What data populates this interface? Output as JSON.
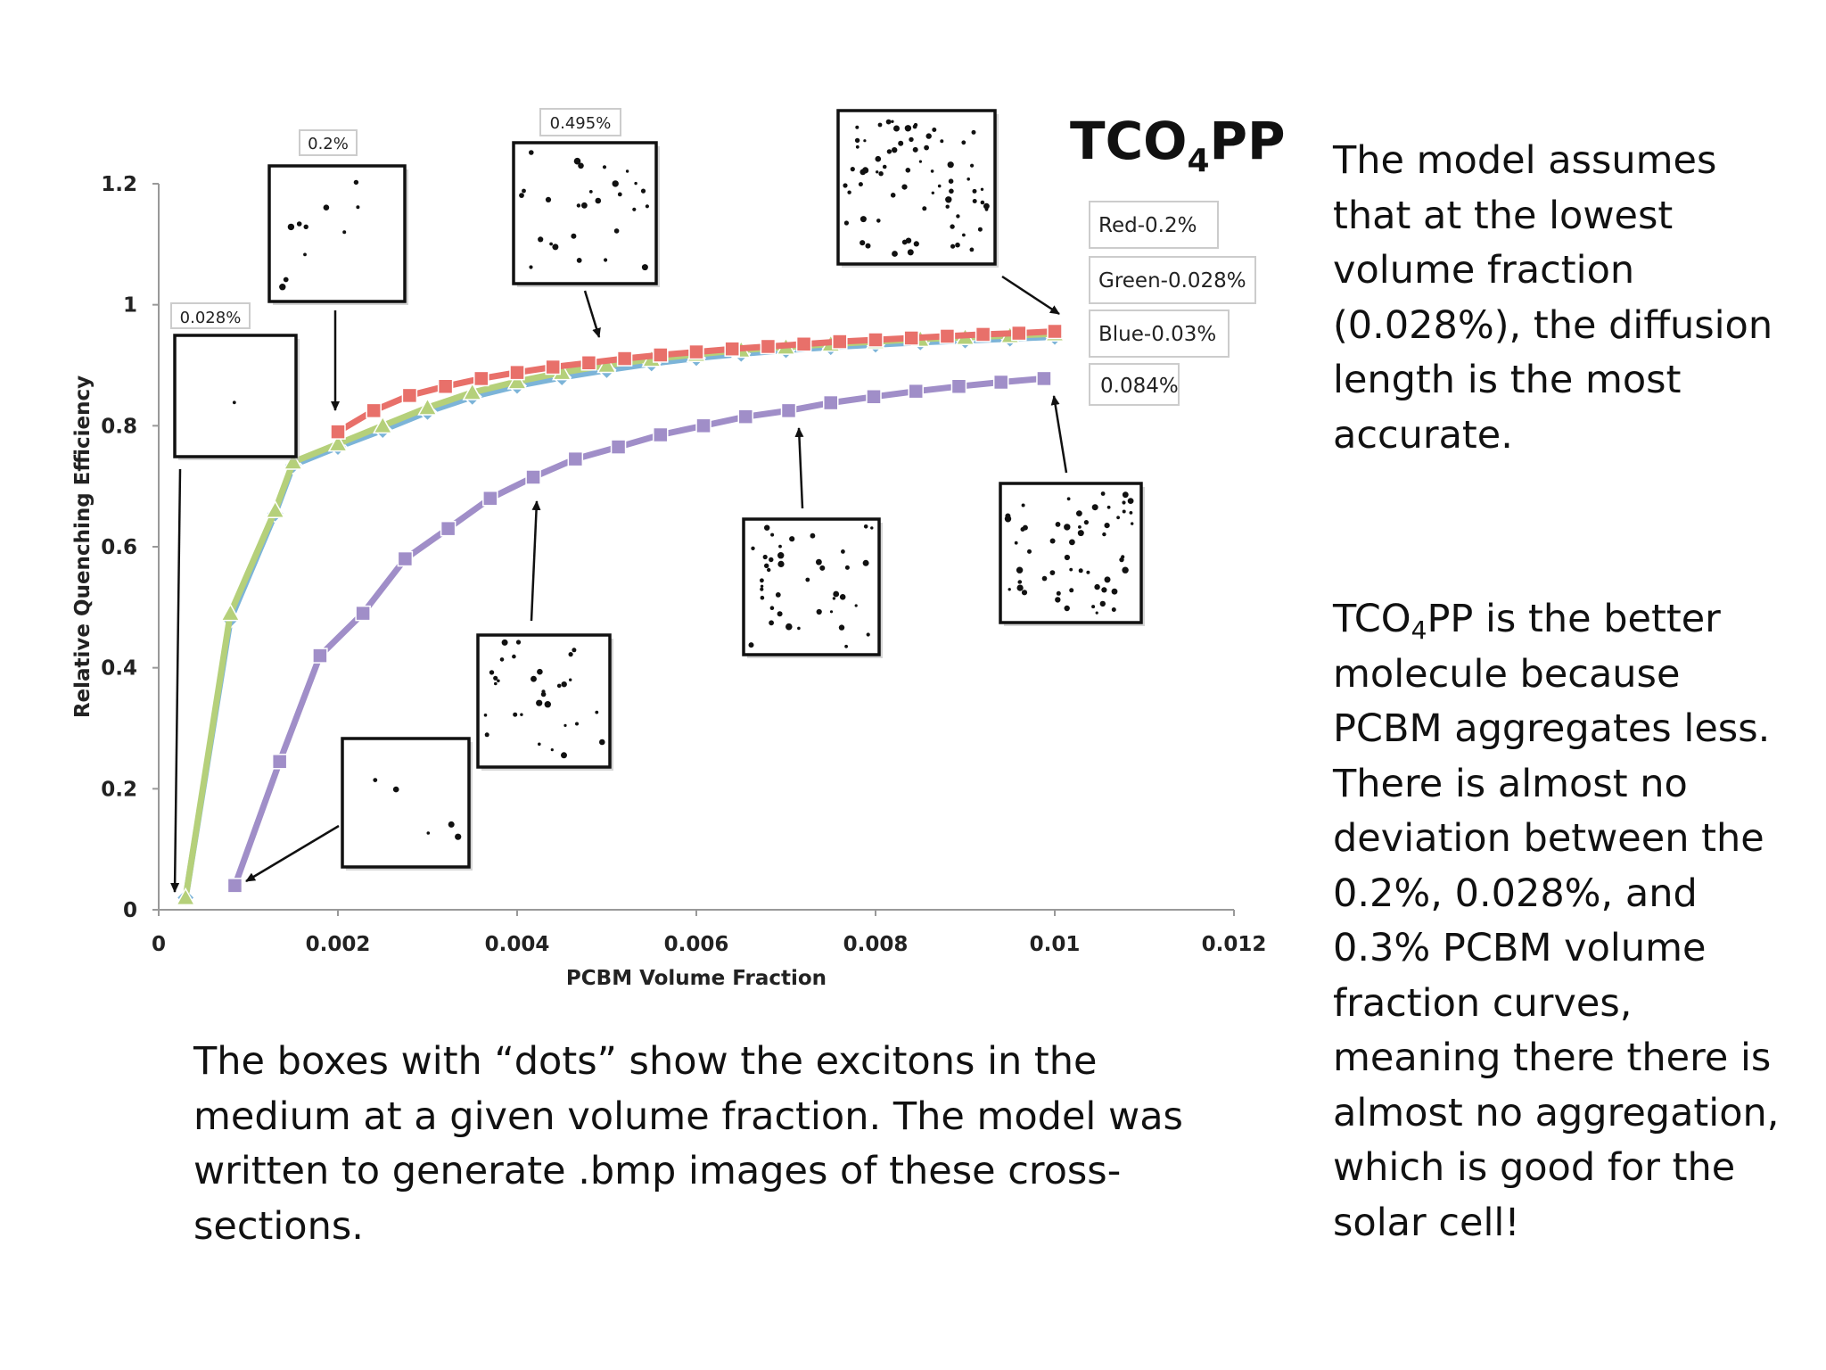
{
  "chart_data": {
    "type": "line",
    "title_main": "TCO",
    "title_sub": "4",
    "title_end": "PP",
    "xlabel": "PCBM Volume Fraction",
    "ylabel": "Relative Quenching Efficiency",
    "xlim": [
      0,
      0.012
    ],
    "ylim": [
      0,
      1.2
    ],
    "x_ticks": [
      "0",
      "0.002",
      "0.004",
      "0.006",
      "0.008",
      "0.01",
      "0.012"
    ],
    "y_ticks": [
      "0",
      "0.2",
      "0.4",
      "0.6",
      "0.8",
      "1",
      "1.2"
    ],
    "grid": false,
    "legend": [
      "Red-0.2%",
      "Green-0.028%",
      "Blue-0.03%",
      "0.084%"
    ],
    "series": [
      {
        "name": "Red-0.2%",
        "color": "#e8706a",
        "marker": "square",
        "x": [
          0.002,
          0.0024,
          0.0028,
          0.0032,
          0.0036,
          0.004,
          0.0044,
          0.0048,
          0.0052,
          0.0056,
          0.006,
          0.0064,
          0.0068,
          0.0072,
          0.0076,
          0.008,
          0.0084,
          0.0088,
          0.0092,
          0.0096,
          0.01
        ],
        "y": [
          0.79,
          0.825,
          0.85,
          0.865,
          0.878,
          0.888,
          0.897,
          0.904,
          0.911,
          0.917,
          0.922,
          0.927,
          0.931,
          0.935,
          0.939,
          0.942,
          0.945,
          0.948,
          0.951,
          0.953,
          0.956
        ]
      },
      {
        "name": "Green-0.028%",
        "color": "#b5d07a",
        "marker": "triangle",
        "x": [
          0.0003,
          0.0008,
          0.0013,
          0.0015,
          0.002,
          0.0025,
          0.003,
          0.0035,
          0.004,
          0.0045,
          0.005,
          0.0055,
          0.006,
          0.0065,
          0.007,
          0.0075,
          0.008,
          0.0085,
          0.009,
          0.0095,
          0.01
        ],
        "y": [
          0.02,
          0.49,
          0.66,
          0.74,
          0.77,
          0.8,
          0.83,
          0.855,
          0.873,
          0.888,
          0.9,
          0.91,
          0.918,
          0.925,
          0.93,
          0.935,
          0.939,
          0.943,
          0.946,
          0.949,
          0.952
        ]
      },
      {
        "name": "Blue-0.03%",
        "color": "#7cb4d8",
        "marker": "diamond",
        "x": [
          0.0003,
          0.0008,
          0.0013,
          0.0015,
          0.002,
          0.0025,
          0.003,
          0.0035,
          0.004,
          0.0045,
          0.005,
          0.0055,
          0.006,
          0.0065,
          0.007,
          0.0075,
          0.008,
          0.0085,
          0.009,
          0.0095,
          0.01
        ],
        "y": [
          0.02,
          0.48,
          0.655,
          0.735,
          0.765,
          0.793,
          0.823,
          0.848,
          0.866,
          0.88,
          0.892,
          0.903,
          0.912,
          0.919,
          0.925,
          0.93,
          0.934,
          0.938,
          0.941,
          0.944,
          0.947
        ]
      },
      {
        "name": "0.084%",
        "color": "#a08ec8",
        "marker": "square",
        "x": [
          0.00085,
          0.00135,
          0.0018,
          0.00228,
          0.00275,
          0.00323,
          0.0037,
          0.00418,
          0.00465,
          0.00513,
          0.0056,
          0.00608,
          0.00655,
          0.00703,
          0.0075,
          0.00798,
          0.00845,
          0.00893,
          0.0094,
          0.00988
        ],
        "y": [
          0.04,
          0.245,
          0.42,
          0.49,
          0.58,
          0.63,
          0.68,
          0.715,
          0.745,
          0.765,
          0.785,
          0.8,
          0.815,
          0.825,
          0.838,
          0.848,
          0.857,
          0.865,
          0.872,
          0.878
        ]
      }
    ],
    "inset_labels": [
      "0.2%",
      "0.495%",
      "0.028%"
    ]
  },
  "notes": {
    "top": "The model assumes that at the lowest volume fraction (0.028%), the diffusion length is the most accurate.",
    "mid_prefix": "TCO",
    "mid_sub": "4",
    "mid_rest": "PP is the better molecule because PCBM aggregates less. There is almost no deviation between the 0.2%, 0.028%, and 0.3% PCBM volume fraction curves, meaning there there is almost no aggregation, which is good for the solar cell!",
    "bottom": "The boxes with “dots” show the excitons in the medium at a given volume fraction. The model was written to generate .bmp images of these cross-sections."
  }
}
